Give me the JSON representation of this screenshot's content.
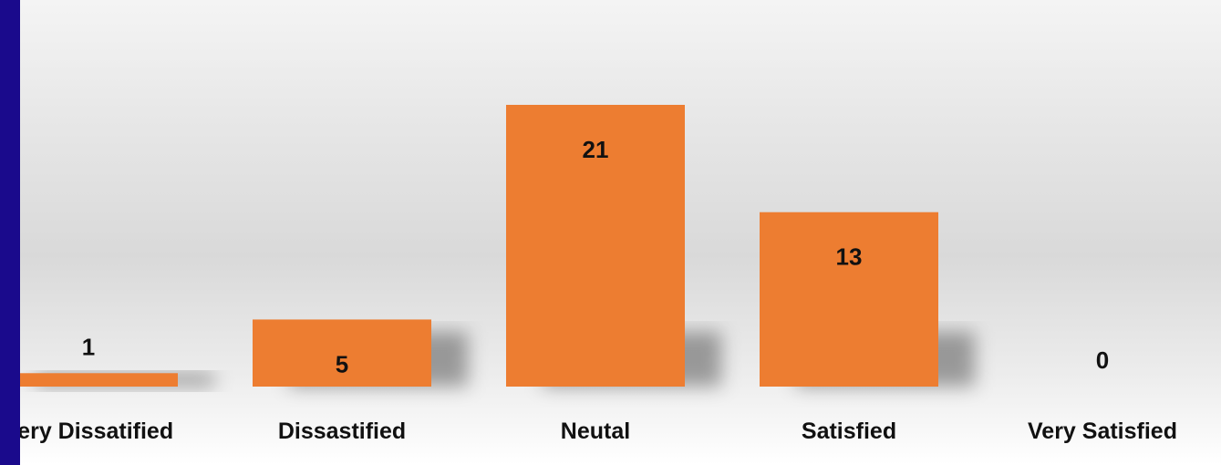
{
  "colors": {
    "accent_bar": "#1a0a8c",
    "bar": "#ed7d31",
    "text": "#111111"
  },
  "chart_data": {
    "type": "bar",
    "title": "",
    "categories": [
      "Very Dissatified",
      "Dissastified",
      "Neutal",
      "Satisfied",
      "Very Satisfied"
    ],
    "values": [
      1,
      5,
      21,
      13,
      0
    ],
    "xlabel": "",
    "ylabel": "",
    "ylim": [
      0,
      21
    ],
    "grid": false,
    "legend": "none",
    "data_labels": true
  }
}
